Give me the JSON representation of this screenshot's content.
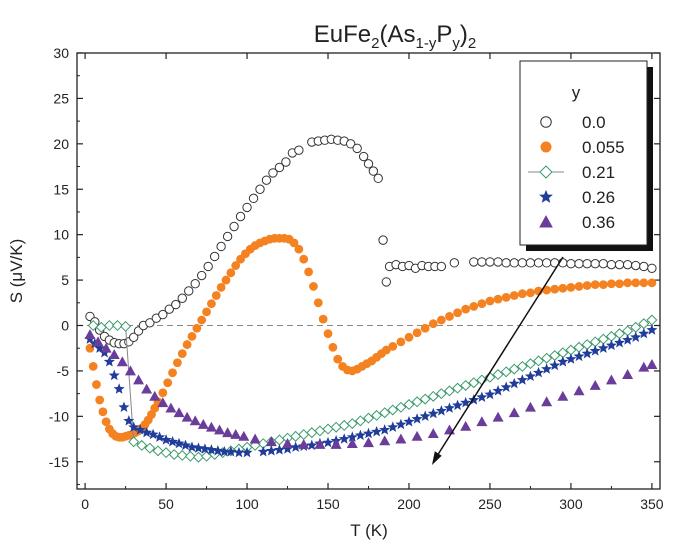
{
  "chart_data": {
    "type": "scatter",
    "title": {
      "base": "EuFe",
      "s1": "2",
      "mid1": "(As",
      "s2": "1-y",
      "mid2": "P",
      "s3": "y",
      "mid3": ")",
      "s4": "2"
    },
    "xlabel": "T (K)",
    "ylabel": "S (μV/K)",
    "xlim": [
      -5,
      355
    ],
    "ylim": [
      -18,
      30
    ],
    "xticks": [
      0,
      50,
      100,
      150,
      200,
      250,
      300,
      350
    ],
    "yticks": [
      -15,
      -10,
      -5,
      0,
      5,
      10,
      15,
      20,
      25,
      30
    ],
    "zero_line": "dashed",
    "grid": false,
    "legend": {
      "title": "y",
      "position": "top-right"
    },
    "series": [
      {
        "name": "0.0",
        "marker": "open-circle",
        "color": "#333333",
        "x": [
          3,
          6,
          9,
          12,
          15,
          18,
          21,
          24,
          27,
          30,
          33,
          36,
          40,
          44,
          48,
          52,
          56,
          60,
          64,
          68,
          72,
          76,
          80,
          84,
          88,
          92,
          96,
          100,
          104,
          108,
          112,
          116,
          120,
          124,
          128,
          132,
          140,
          144,
          148,
          152,
          156,
          160,
          164,
          168,
          172,
          175,
          178,
          181,
          184,
          186,
          188,
          192,
          196,
          200,
          204,
          208,
          212,
          216,
          220,
          228,
          240,
          245,
          250,
          255,
          260,
          265,
          270,
          275,
          280,
          285,
          290,
          295,
          300,
          305,
          310,
          315,
          320,
          325,
          330,
          335,
          340,
          345,
          350
        ],
        "y": [
          1.0,
          0.4,
          -0.5,
          -1.2,
          -1.6,
          -1.9,
          -2.0,
          -2.0,
          -1.8,
          -1.3,
          -0.6,
          0.0,
          0.3,
          0.8,
          1.2,
          1.8,
          2.3,
          3.0,
          3.8,
          4.6,
          5.5,
          6.5,
          7.6,
          8.7,
          9.8,
          10.9,
          12.0,
          13.0,
          14.0,
          15.0,
          16.0,
          16.8,
          17.4,
          18.0,
          19.0,
          19.3,
          20.2,
          20.3,
          20.4,
          20.5,
          20.4,
          20.3,
          20.0,
          19.5,
          18.6,
          17.8,
          17.0,
          16.2,
          9.4,
          4.8,
          6.5,
          6.7,
          6.5,
          6.6,
          6.3,
          6.6,
          6.5,
          6.5,
          6.5,
          6.9,
          7.0,
          7.0,
          7.0,
          7.0,
          6.9,
          6.9,
          6.9,
          6.9,
          6.9,
          6.9,
          6.9,
          6.9,
          6.8,
          6.8,
          6.8,
          6.8,
          6.8,
          6.7,
          6.7,
          6.7,
          6.6,
          6.5,
          6.3
        ]
      },
      {
        "name": "0.055",
        "marker": "filled-circle",
        "color": "#f58220",
        "x": [
          3,
          5,
          7,
          9,
          11,
          13,
          15,
          17,
          19,
          21,
          23,
          25,
          27,
          29,
          31,
          33,
          35,
          37,
          39,
          41,
          43,
          45,
          48,
          51,
          54,
          57,
          60,
          63,
          66,
          69,
          72,
          75,
          78,
          81,
          84,
          87,
          90,
          93,
          96,
          99,
          102,
          105,
          108,
          111,
          114,
          117,
          120,
          123,
          126,
          129,
          132,
          135,
          138,
          141,
          144,
          147,
          150,
          153,
          156,
          159,
          162,
          165,
          168,
          171,
          174,
          177,
          180,
          183,
          186,
          190,
          195,
          200,
          205,
          210,
          215,
          220,
          225,
          230,
          235,
          240,
          245,
          250,
          255,
          260,
          265,
          270,
          275,
          280,
          285,
          290,
          295,
          300,
          305,
          310,
          315,
          320,
          325,
          330,
          335,
          340,
          345,
          350
        ],
        "y": [
          -2.5,
          -4.5,
          -6.5,
          -8.2,
          -9.5,
          -10.6,
          -11.4,
          -11.9,
          -12.2,
          -12.3,
          -12.3,
          -12.2,
          -12.1,
          -12.0,
          -11.8,
          -11.6,
          -11.3,
          -10.9,
          -10.4,
          -9.8,
          -9.1,
          -8.4,
          -7.4,
          -6.3,
          -5.2,
          -4.1,
          -3.1,
          -2.1,
          -1.2,
          -0.3,
          0.6,
          1.5,
          2.4,
          3.3,
          4.2,
          5.0,
          5.8,
          6.6,
          7.3,
          7.9,
          8.4,
          8.8,
          9.1,
          9.3,
          9.5,
          9.6,
          9.6,
          9.6,
          9.5,
          9.1,
          8.4,
          7.3,
          5.9,
          4.3,
          2.5,
          0.7,
          -0.9,
          -2.4,
          -3.7,
          -4.5,
          -4.9,
          -5.0,
          -4.8,
          -4.5,
          -4.2,
          -3.9,
          -3.5,
          -3.1,
          -2.7,
          -2.3,
          -1.8,
          -1.3,
          -0.8,
          -0.3,
          0.2,
          0.6,
          1.0,
          1.4,
          1.8,
          2.1,
          2.4,
          2.7,
          2.9,
          3.1,
          3.3,
          3.5,
          3.6,
          3.8,
          3.9,
          4.0,
          4.1,
          4.2,
          4.3,
          4.4,
          4.5,
          4.5,
          4.6,
          4.6,
          4.7,
          4.7,
          4.7,
          4.7
        ]
      },
      {
        "name": "0.21",
        "marker": "open-diamond",
        "color": "#3c9b6c",
        "x": [
          5,
          10,
          15,
          20,
          25,
          30,
          35,
          40,
          45,
          50,
          55,
          60,
          65,
          70,
          75,
          80,
          85,
          90,
          95,
          100,
          105,
          110,
          115,
          120,
          125,
          130,
          135,
          140,
          145,
          150,
          155,
          160,
          165,
          170,
          175,
          180,
          185,
          190,
          195,
          200,
          205,
          210,
          215,
          220,
          225,
          230,
          235,
          240,
          245,
          250,
          255,
          260,
          265,
          270,
          275,
          280,
          285,
          290,
          295,
          300,
          305,
          310,
          315,
          320,
          325,
          330,
          335,
          340,
          345,
          350
        ],
        "y": [
          0.0,
          -0.2,
          0.0,
          0.0,
          -0.1,
          -12.8,
          -13.2,
          -13.5,
          -13.8,
          -14.0,
          -14.2,
          -14.3,
          -14.4,
          -14.5,
          -14.4,
          -14.2,
          -14.0,
          -13.8,
          -13.6,
          -13.4,
          -13.2,
          -13.0,
          -12.8,
          -12.6,
          -12.4,
          -12.2,
          -12.0,
          -11.8,
          -11.6,
          -11.4,
          -11.2,
          -11.0,
          -10.8,
          -10.5,
          -10.2,
          -9.9,
          -9.6,
          -9.3,
          -9.0,
          -8.7,
          -8.4,
          -8.1,
          -7.8,
          -7.5,
          -7.2,
          -6.9,
          -6.6,
          -6.3,
          -6.0,
          -5.7,
          -5.4,
          -5.1,
          -4.8,
          -4.5,
          -4.2,
          -3.9,
          -3.6,
          -3.3,
          -3.0,
          -2.7,
          -2.4,
          -2.1,
          -1.8,
          -1.5,
          -1.2,
          -0.9,
          -0.6,
          -0.2,
          0.2,
          0.6
        ]
      },
      {
        "name": "0.26",
        "marker": "star",
        "color": "#1f3d99",
        "x": [
          3,
          6,
          9,
          12,
          15,
          18,
          21,
          24,
          27,
          30,
          34,
          38,
          42,
          46,
          50,
          54,
          58,
          62,
          66,
          70,
          74,
          78,
          82,
          86,
          90,
          95,
          100,
          110,
          115,
          120,
          125,
          130,
          135,
          140,
          145,
          150,
          155,
          160,
          165,
          170,
          175,
          180,
          185,
          190,
          195,
          200,
          205,
          210,
          215,
          220,
          225,
          230,
          235,
          240,
          245,
          250,
          255,
          260,
          265,
          270,
          275,
          280,
          285,
          290,
          295,
          300,
          305,
          310,
          315,
          320,
          325,
          330,
          335,
          340,
          345,
          350
        ],
        "y": [
          -1.5,
          -2.0,
          -2.5,
          -3.0,
          -4.0,
          -5.5,
          -7.0,
          -9.0,
          -10.5,
          -11.2,
          -11.5,
          -11.8,
          -12.0,
          -12.3,
          -12.6,
          -12.8,
          -13.0,
          -13.2,
          -13.4,
          -13.5,
          -13.6,
          -13.7,
          -13.8,
          -13.9,
          -13.9,
          -14.0,
          -14.0,
          -13.9,
          -13.8,
          -13.7,
          -13.6,
          -13.4,
          -13.3,
          -13.2,
          -13.0,
          -12.9,
          -12.7,
          -12.5,
          -12.3,
          -12.1,
          -11.9,
          -11.7,
          -11.5,
          -11.2,
          -10.9,
          -10.6,
          -10.3,
          -10.0,
          -9.7,
          -9.4,
          -9.1,
          -8.8,
          -8.5,
          -8.2,
          -7.9,
          -7.6,
          -7.2,
          -6.8,
          -6.4,
          -6.0,
          -5.6,
          -5.2,
          -4.8,
          -4.4,
          -4.0,
          -3.7,
          -3.4,
          -3.1,
          -2.8,
          -2.5,
          -2.2,
          -1.9,
          -1.6,
          -1.3,
          -0.9,
          -0.5
        ]
      },
      {
        "name": "0.36",
        "marker": "filled-triangle",
        "color": "#6a3d9a",
        "x": [
          3,
          8,
          13,
          18,
          23,
          28,
          33,
          38,
          43,
          48,
          53,
          58,
          63,
          68,
          73,
          78,
          83,
          88,
          93,
          98,
          105,
          115,
          125,
          135,
          145,
          155,
          165,
          175,
          185,
          195,
          205,
          215,
          225,
          235,
          245,
          255,
          265,
          275,
          285,
          295,
          305,
          315,
          325,
          335,
          345,
          350
        ],
        "y": [
          -1.0,
          -1.8,
          -2.5,
          -3.2,
          -4.0,
          -5.0,
          -6.0,
          -7.0,
          -7.8,
          -8.5,
          -9.1,
          -9.6,
          -10.1,
          -10.5,
          -10.9,
          -11.2,
          -11.5,
          -11.8,
          -12.0,
          -12.2,
          -12.5,
          -12.8,
          -13.0,
          -13.1,
          -13.1,
          -13.1,
          -13.0,
          -12.9,
          -12.7,
          -12.5,
          -12.2,
          -11.9,
          -11.5,
          -11.1,
          -10.6,
          -10.1,
          -9.6,
          -9.0,
          -8.4,
          -7.8,
          -7.2,
          -6.6,
          -6.0,
          -5.4,
          -4.6,
          -4.3
        ]
      }
    ]
  }
}
